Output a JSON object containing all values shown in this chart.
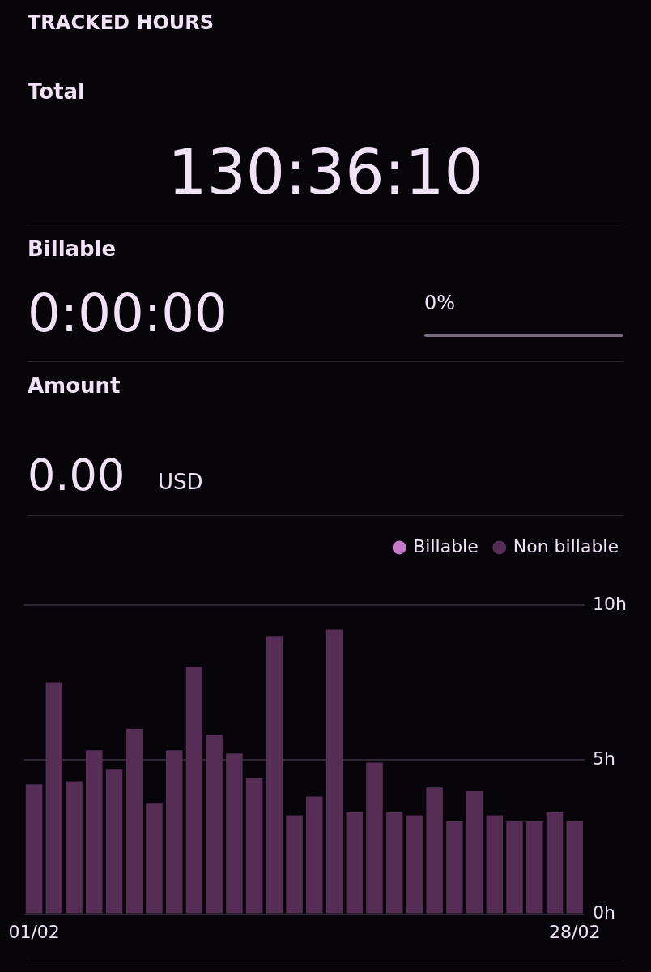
{
  "chart_data": {
    "type": "bar",
    "title": "TRACKED HOURS",
    "annotations": [
      "Total",
      "130:36:10",
      "Billable",
      "0:00:00",
      "0%",
      "Amount",
      "0.00",
      "USD"
    ],
    "categories": [
      "01/02",
      null,
      null,
      null,
      null,
      null,
      null,
      null,
      null,
      null,
      null,
      null,
      null,
      null,
      null,
      null,
      null,
      null,
      null,
      null,
      null,
      null,
      null,
      null,
      null,
      null,
      null,
      "28/02"
    ],
    "series": [
      {
        "name": "Billable",
        "color": "#c77ccb",
        "values": [
          0,
          0,
          0,
          0,
          0,
          0,
          0,
          0,
          0,
          0,
          0,
          0,
          0,
          0,
          0,
          0,
          0,
          0,
          0,
          0,
          0,
          0,
          0,
          0,
          0,
          0,
          0,
          0
        ]
      },
      {
        "name": "Non billable",
        "color": "#552d55",
        "values": [
          4.2,
          7.5,
          4.3,
          5.3,
          4.7,
          6.0,
          3.6,
          5.3,
          8.0,
          5.8,
          5.2,
          4.4,
          9.0,
          3.2,
          3.8,
          9.2,
          3.3,
          4.9,
          3.3,
          3.2,
          4.1,
          3.0,
          4.0,
          3.2,
          3.0,
          3.0,
          3.3,
          3.0
        ]
      }
    ],
    "stacked": true,
    "ylim": [
      0,
      10
    ],
    "yticks": [
      {
        "value": 0,
        "label": "0h"
      },
      {
        "value": 5,
        "label": "5h"
      },
      {
        "value": 10,
        "label": "10h"
      }
    ],
    "grid": "y",
    "legend": "top right",
    "marker": "circle"
  }
}
